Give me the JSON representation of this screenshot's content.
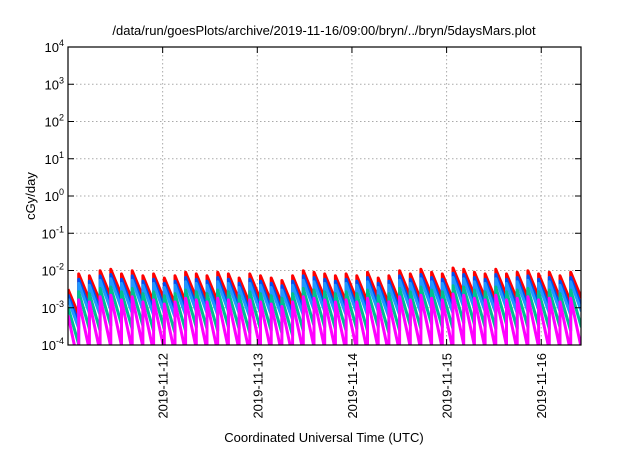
{
  "chart_data": {
    "type": "line",
    "title": "/data/run/goesPlots/archive/2019-11-16/09:00/bryn/../bryn/5daysMars.plot",
    "xlabel": "Coordinated Universal Time (UTC)",
    "ylabel": "cGy/day",
    "yscale": "log",
    "ylim": [
      0.0001,
      10000
    ],
    "xlim_days_of_nov_2019": [
      11.0,
      16.42
    ],
    "grid": true,
    "y_ticks": [
      {
        "base": "10",
        "exp": "-4",
        "value": 0.0001
      },
      {
        "base": "10",
        "exp": "-3",
        "value": 0.001
      },
      {
        "base": "10",
        "exp": "-2",
        "value": 0.01
      },
      {
        "base": "10",
        "exp": "-1",
        "value": 0.1
      },
      {
        "base": "10",
        "exp": "0",
        "value": 1
      },
      {
        "base": "10",
        "exp": "1",
        "value": 10
      },
      {
        "base": "10",
        "exp": "2",
        "value": 100
      },
      {
        "base": "10",
        "exp": "3",
        "value": 1000
      },
      {
        "base": "10",
        "exp": "4",
        "value": 10000
      }
    ],
    "x_ticks": [
      {
        "label": "2019-11-12",
        "day": 12
      },
      {
        "label": "2019-11-13",
        "day": 13
      },
      {
        "label": "2019-11-14",
        "day": 14
      },
      {
        "label": "2019-11-15",
        "day": 15
      },
      {
        "label": "2019-11-16",
        "day": 16
      }
    ],
    "tooth_start_day": 11.0,
    "tooth_step_day": 0.113,
    "tooth_modulation": [
      0.35,
      0.9,
      0.8,
      1.1,
      1.2,
      0.9,
      1.1,
      0.8,
      0.9,
      0.7,
      0.8,
      1.0,
      0.9,
      0.8,
      1.0,
      0.9,
      0.7,
      0.9,
      0.8,
      0.7,
      0.6,
      0.8,
      1.1,
      1.0,
      0.9,
      0.8,
      0.9,
      0.8,
      1.0,
      0.7,
      0.8,
      1.1,
      0.9,
      1.2,
      1.0,
      0.9,
      1.3,
      1.2,
      1.0,
      0.9,
      1.2,
      0.9,
      1.0,
      1.1,
      0.9,
      1.0,
      0.8,
      1.0
    ],
    "series": [
      {
        "name": "red",
        "color": "#ff0000",
        "peak": 0.009,
        "trough": 0.0018
      },
      {
        "name": "blue",
        "color": "#0050f0",
        "peak": 0.0065,
        "trough": 0.0011
      },
      {
        "name": "light-blue",
        "color": "#2098ff",
        "peak": 0.005,
        "trough": 0.0008
      },
      {
        "name": "teal",
        "color": "#00c090",
        "peak": 0.003,
        "trough": 0.0003
      },
      {
        "name": "magenta",
        "color": "#ff00ff",
        "peak": 0.0018,
        "trough": 8e-05
      }
    ]
  }
}
